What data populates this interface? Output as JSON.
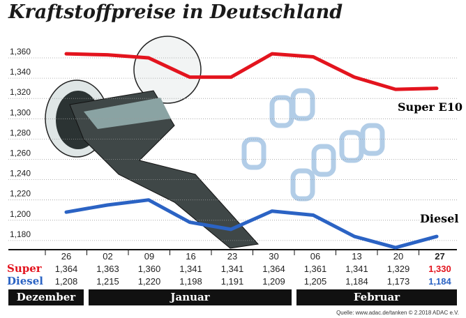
{
  "title": "Kraftstoffpreise in Deutschland",
  "source": "Quelle: www.adac.de/tanken  © 2.2018  ADAC e.V.",
  "months": [
    "Dezember",
    "Januar",
    "Februar"
  ],
  "row_labels": {
    "super": "Super",
    "diesel": "Diesel"
  },
  "colors": {
    "super": "#e3141e",
    "diesel": "#2b63c4"
  },
  "chart_data": {
    "type": "line",
    "categories": [
      "26",
      "02",
      "09",
      "16",
      "23",
      "30",
      "06",
      "13",
      "20",
      "27"
    ],
    "series": [
      {
        "name": "Super E10",
        "values": [
          1.364,
          1.363,
          1.36,
          1.341,
          1.341,
          1.364,
          1.361,
          1.341,
          1.329,
          1.33
        ],
        "labels": [
          "1,364",
          "1,363",
          "1,360",
          "1,341",
          "1,341",
          "1,364",
          "1,361",
          "1,341",
          "1,329",
          "1,330"
        ]
      },
      {
        "name": "Diesel",
        "values": [
          1.208,
          1.215,
          1.22,
          1.198,
          1.191,
          1.209,
          1.205,
          1.184,
          1.173,
          1.184
        ],
        "labels": [
          "1,208",
          "1,215",
          "1,220",
          "1,198",
          "1,191",
          "1,209",
          "1,205",
          "1,184",
          "1,173",
          "1,184"
        ]
      }
    ],
    "yticks": [
      "1,360",
      "1,340",
      "1,320",
      "1,300",
      "1,280",
      "1,260",
      "1,240",
      "1,220",
      "1,200",
      "1,180"
    ],
    "ylim": [
      1.17,
      1.37
    ],
    "grid": true
  }
}
